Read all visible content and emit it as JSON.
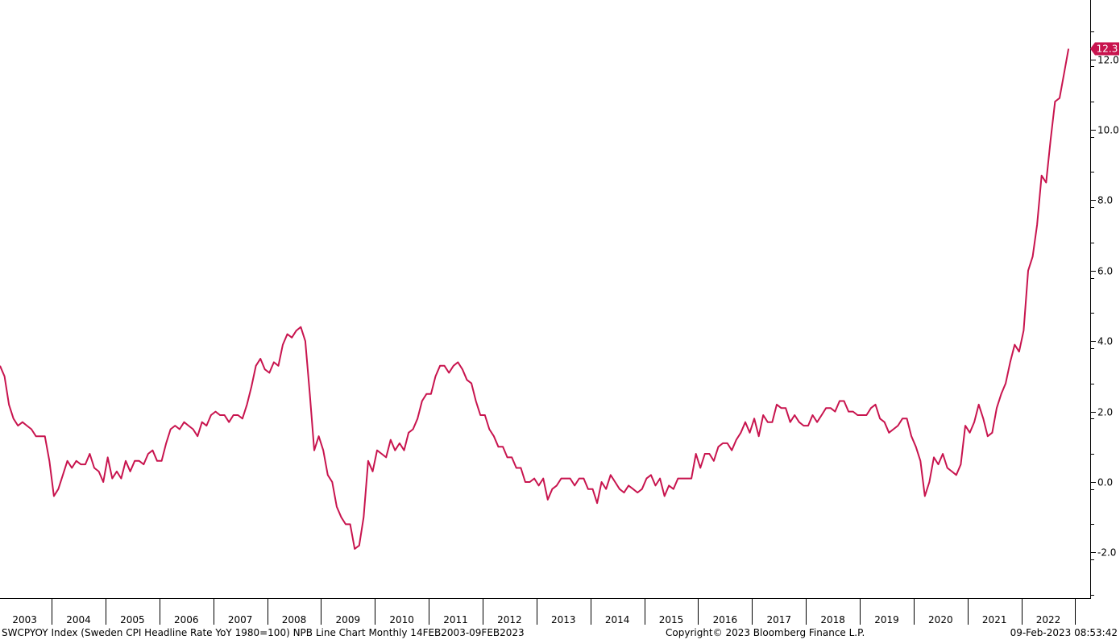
{
  "chart_data": {
    "type": "line",
    "title": "",
    "xlabel": "",
    "ylabel": "",
    "line_color": "#c8144e",
    "ylim": [
      -3.2,
      13.6
    ],
    "y_ticks": [
      -2.0,
      0.0,
      2.0,
      4.0,
      6.0,
      8.0,
      10.0,
      12.0
    ],
    "y_tick_labels": [
      "-2.0",
      "0.0",
      "2.0",
      "4.0",
      "6.0",
      "8.0",
      "10.0",
      "12.0"
    ],
    "x_tick_labels": [
      "2003",
      "2004",
      "2005",
      "2006",
      "2007",
      "2008",
      "2009",
      "2010",
      "2011",
      "2012",
      "2013",
      "2014",
      "2015",
      "2016",
      "2017",
      "2018",
      "2019",
      "2020",
      "2021",
      "2022"
    ],
    "last_value_label": "12.3",
    "series": [
      {
        "start": "2003-01",
        "frequency": "monthly",
        "values": [
          3.3,
          3.0,
          2.2,
          1.8,
          1.6,
          1.7,
          1.6,
          1.5,
          1.3,
          1.3,
          1.3,
          0.6,
          -0.4,
          -0.2,
          0.2,
          0.6,
          0.4,
          0.6,
          0.5,
          0.5,
          0.8,
          0.4,
          0.3,
          0.0,
          0.7,
          0.1,
          0.3,
          0.1,
          0.6,
          0.3,
          0.6,
          0.6,
          0.5,
          0.8,
          0.9,
          0.6,
          0.6,
          1.1,
          1.5,
          1.6,
          1.5,
          1.7,
          1.6,
          1.5,
          1.3,
          1.7,
          1.6,
          1.9,
          2.0,
          1.9,
          1.9,
          1.7,
          1.9,
          1.9,
          1.8,
          2.2,
          2.7,
          3.3,
          3.5,
          3.2,
          3.1,
          3.4,
          3.3,
          3.9,
          4.2,
          4.1,
          4.3,
          4.4,
          4.0,
          2.5,
          0.9,
          1.3,
          0.9,
          0.2,
          0.0,
          -0.7,
          -1.0,
          -1.2,
          -1.2,
          -1.9,
          -1.8,
          -1.0,
          0.6,
          0.3,
          0.9,
          0.8,
          0.7,
          1.2,
          0.9,
          1.1,
          0.9,
          1.4,
          1.5,
          1.8,
          2.3,
          2.5,
          2.5,
          3.0,
          3.3,
          3.3,
          3.1,
          3.3,
          3.4,
          3.2,
          2.9,
          2.8,
          2.3,
          1.9,
          1.9,
          1.5,
          1.3,
          1.0,
          1.0,
          0.7,
          0.7,
          0.4,
          0.4,
          0.0,
          0.0,
          0.1,
          -0.1,
          0.1,
          -0.5,
          -0.2,
          -0.1,
          0.1,
          0.1,
          0.1,
          -0.1,
          0.1,
          0.1,
          -0.2,
          -0.2,
          -0.6,
          0.0,
          -0.2,
          0.2,
          0.0,
          -0.2,
          -0.3,
          -0.1,
          -0.2,
          -0.3,
          -0.2,
          0.1,
          0.2,
          -0.1,
          0.1,
          -0.4,
          -0.1,
          -0.2,
          0.1,
          0.1,
          0.1,
          0.1,
          0.8,
          0.4,
          0.8,
          0.8,
          0.6,
          1.0,
          1.1,
          1.1,
          0.9,
          1.2,
          1.4,
          1.7,
          1.4,
          1.8,
          1.3,
          1.9,
          1.7,
          1.7,
          2.2,
          2.1,
          2.1,
          1.7,
          1.9,
          1.7,
          1.6,
          1.6,
          1.9,
          1.7,
          1.9,
          2.1,
          2.1,
          2.0,
          2.3,
          2.3,
          2.0,
          2.0,
          1.9,
          1.9,
          1.9,
          2.1,
          2.2,
          1.8,
          1.7,
          1.4,
          1.5,
          1.6,
          1.8,
          1.8,
          1.3,
          1.0,
          0.6,
          -0.4,
          0.0,
          0.7,
          0.5,
          0.8,
          0.4,
          0.3,
          0.2,
          0.5,
          1.6,
          1.4,
          1.7,
          2.2,
          1.8,
          1.3,
          1.4,
          2.1,
          2.5,
          2.8,
          3.4,
          3.9,
          3.7,
          4.3,
          6.0,
          6.4,
          7.3,
          8.7,
          8.5,
          9.7,
          10.8,
          10.9,
          11.6,
          12.3
        ]
      }
    ]
  },
  "footer": {
    "left": "SWCPYOY Index (Sweden CPI Headline Rate YoY 1980=100) NPB Line Chart  Monthly 14FEB2003-09FEB2023",
    "center": "Copyright© 2023 Bloomberg Finance L.P.",
    "right": "09-Feb-2023 08:53:42"
  }
}
